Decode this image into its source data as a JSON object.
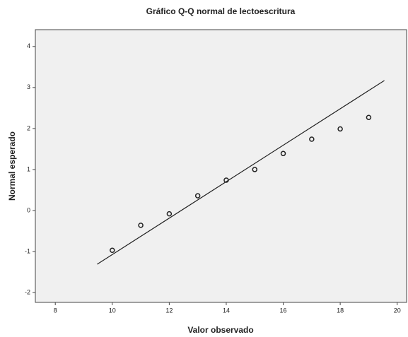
{
  "chart_data": {
    "type": "scatter",
    "title": "Gráfico Q-Q normal de lectoescritura",
    "x_label": "Valor observado",
    "y_label": "Normal esperado",
    "series": [
      {
        "color": "#222222",
        "x": [
          10,
          11,
          12,
          13,
          14,
          15,
          16,
          17,
          18,
          19
        ],
        "values": [
          -0.97,
          -0.36,
          -0.08,
          0.36,
          0.74,
          1.0,
          1.39,
          1.74,
          1.99,
          2.27
        ]
      }
    ],
    "reference_line": {
      "color": "#222222",
      "x": [
        9.47,
        19.55
      ],
      "y": [
        -1.31,
        3.17
      ]
    },
    "xlim": [
      7.3,
      20.33
    ],
    "xticks": [
      8,
      10,
      12,
      14,
      16,
      18,
      20
    ],
    "ylim": [
      -2.24,
      4.41
    ],
    "yticks": [
      -2,
      -1,
      0,
      1,
      2,
      3,
      4
    ]
  }
}
